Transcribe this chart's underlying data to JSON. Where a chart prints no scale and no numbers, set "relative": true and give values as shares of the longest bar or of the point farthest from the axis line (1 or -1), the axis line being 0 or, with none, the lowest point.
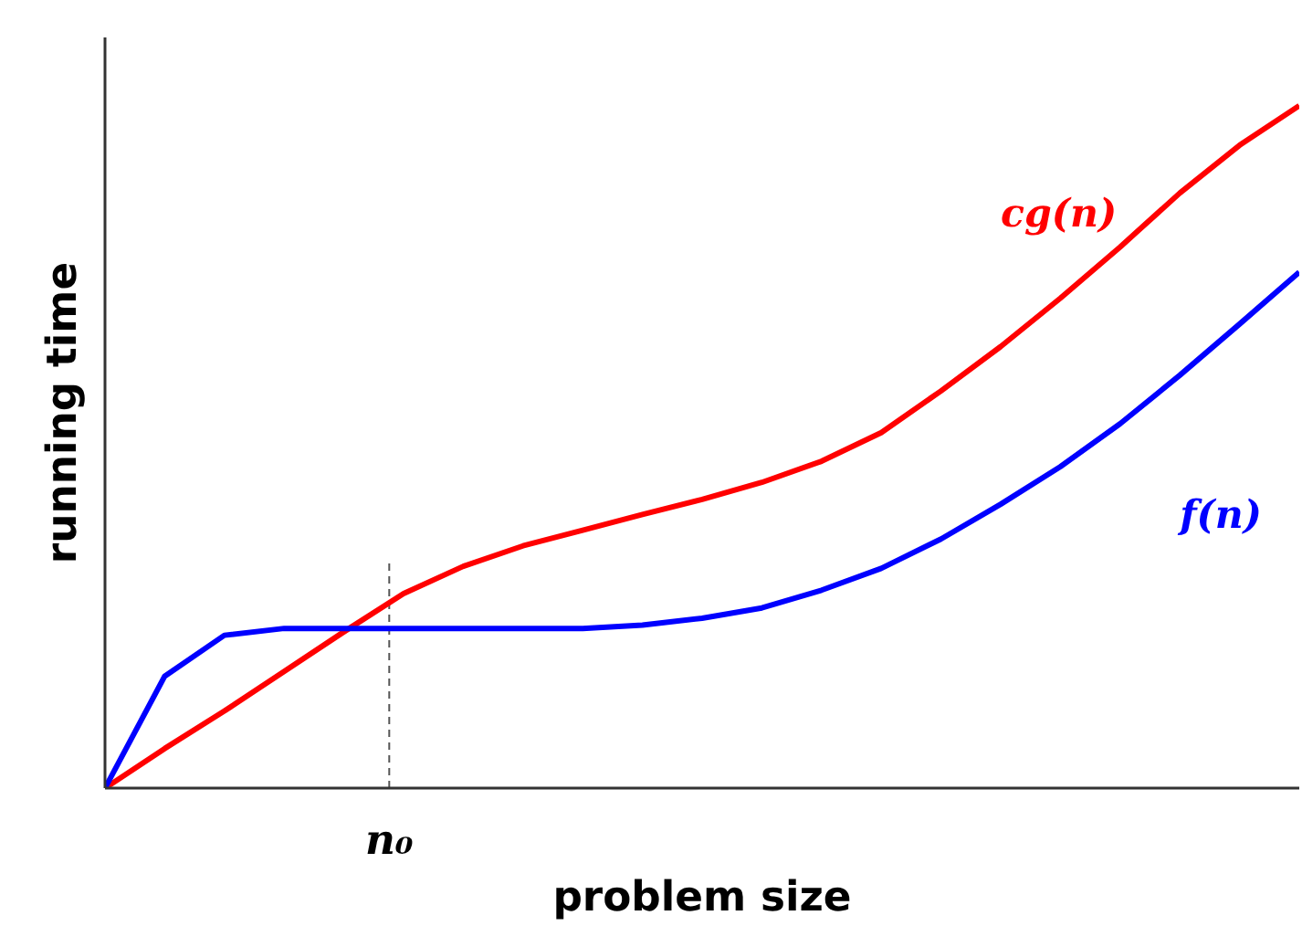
{
  "chart_data": {
    "type": "line",
    "relative": true,
    "xlabel": "problem size",
    "ylabel": "running time",
    "categories": [
      null,
      null,
      null,
      null,
      null,
      null,
      null,
      null,
      null,
      null,
      null,
      null,
      null,
      null,
      null,
      null,
      null,
      null,
      null,
      null,
      null
    ],
    "annotations": [
      "n₀"
    ],
    "series": [
      {
        "name": "cg(n)",
        "color": "#ff0000",
        "values": [
          0,
          0.058,
          0.113,
          0.171,
          0.229,
          0.285,
          0.325,
          0.355,
          0.378,
          0.401,
          0.423,
          0.448,
          0.479,
          0.521,
          0.582,
          0.647,
          0.718,
          0.793,
          0.872,
          0.942,
          1
        ]
      },
      {
        "name": "f(n)",
        "color": "#0000ff",
        "values": [
          0,
          0.164,
          0.224,
          0.234,
          0.234,
          0.234,
          0.234,
          0.234,
          0.234,
          0.239,
          0.249,
          0.264,
          0.29,
          0.322,
          0.365,
          0.416,
          0.471,
          0.534,
          0.605,
          0.68,
          0.756
        ]
      }
    ],
    "marker": "none",
    "line_style": "solid"
  }
}
